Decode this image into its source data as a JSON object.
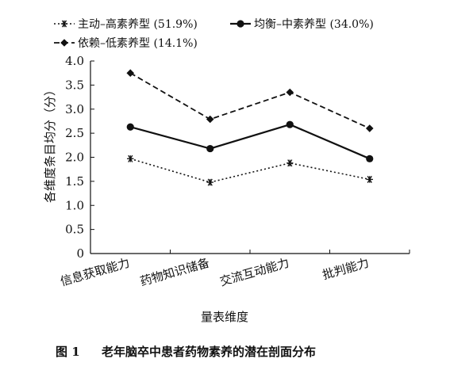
{
  "chart_data": {
    "type": "line",
    "title": "",
    "xlabel": "量表维度",
    "ylabel": "各维度条目均分（分）",
    "ylim": [
      0,
      4.0
    ],
    "y_ticks": [
      "0",
      "0.5",
      "1.0",
      "1.5",
      "2.0",
      "2.5",
      "3.0",
      "3.5",
      "4.0"
    ],
    "categories": [
      "信息获取能力",
      "药物知识储备",
      "交流互动能力",
      "批判能力"
    ],
    "grid": false,
    "legend_position": "top",
    "series": [
      {
        "name": "主动–高素养型 (51.9%)",
        "values": [
          1.97,
          1.48,
          1.88,
          1.54
        ],
        "line_style": "dotted",
        "marker": "asterisk",
        "color": "#111111"
      },
      {
        "name": "均衡–中素养型 (34.0%)",
        "values": [
          2.63,
          2.18,
          2.68,
          1.97
        ],
        "line_style": "solid",
        "marker": "circle",
        "color": "#111111"
      },
      {
        "name": "依赖–低素养型 (14.1%)",
        "values": [
          3.75,
          2.79,
          3.35,
          2.6
        ],
        "line_style": "dashed",
        "marker": "diamond",
        "color": "#111111"
      }
    ]
  },
  "caption": {
    "label": "图 1",
    "text": "老年脑卒中患者药物素养的潜在剖面分布"
  }
}
